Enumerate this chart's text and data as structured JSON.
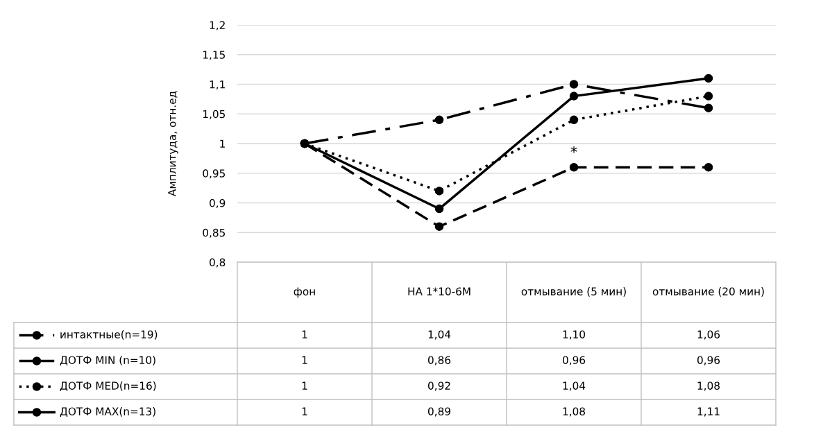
{
  "chart_data": {
    "type": "line",
    "ylabel": "Амплитуда, отн.ед",
    "categories": [
      "фон",
      "НА 1*10-6М",
      "отмывание (5 мин)",
      "отмывание (20 мин)"
    ],
    "series": [
      {
        "name": "интактные(n=19)",
        "color": "#000000",
        "line_style": "dashdot",
        "values": [
          1,
          1.04,
          1.1,
          1.06
        ],
        "value_labels": [
          "1",
          "1,04",
          "1,10",
          "1,06"
        ]
      },
      {
        "name": "ДОТФ MIN (n=10)",
        "color": "#000000",
        "line_style": "dashed",
        "values": [
          1,
          0.86,
          0.96,
          0.96
        ],
        "value_labels": [
          "1",
          "0,86",
          "0,96",
          "0,96"
        ]
      },
      {
        "name": "ДОТФ MED(n=16)",
        "color": "#000000",
        "line_style": "dotted",
        "values": [
          1,
          0.92,
          1.04,
          1.08
        ],
        "value_labels": [
          "1",
          "0,92",
          "1,04",
          "1,08"
        ]
      },
      {
        "name": "ДОТФ MAX(n=13)",
        "color": "#000000",
        "line_style": "solid",
        "values": [
          1,
          0.89,
          1.08,
          1.11
        ],
        "value_labels": [
          "1",
          "0,89",
          "1,08",
          "1,11"
        ]
      }
    ],
    "ylim": [
      0.8,
      1.2
    ],
    "yticks": [
      {
        "value": 0.8,
        "label": "0,8"
      },
      {
        "value": 0.85,
        "label": "0,85"
      },
      {
        "value": 0.9,
        "label": "0,9"
      },
      {
        "value": 0.95,
        "label": "0,95"
      },
      {
        "value": 1,
        "label": "1"
      },
      {
        "value": 1.05,
        "label": "1,05"
      },
      {
        "value": 1.1,
        "label": "1,1"
      },
      {
        "value": 1.15,
        "label": "1,15"
      },
      {
        "value": 1.2,
        "label": "1,2"
      }
    ],
    "grid": "y",
    "marker": "circle",
    "legend": "left",
    "annotations": [
      "*"
    ]
  }
}
